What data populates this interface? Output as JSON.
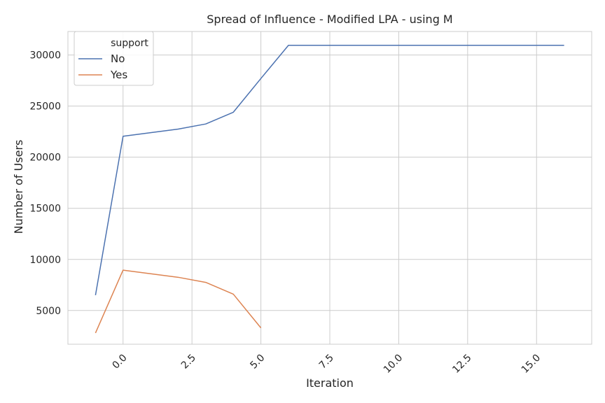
{
  "chart_data": {
    "type": "line",
    "title": "Spread of Influence - Modified LPA - using M",
    "xlabel": "Iteration",
    "ylabel": "Number of Users",
    "xlim": [
      -2,
      17
    ],
    "ylim": [
      1700,
      32300
    ],
    "xticks": [
      0.0,
      2.5,
      5.0,
      7.5,
      10.0,
      12.5,
      15.0
    ],
    "xtick_labels": [
      "0.0",
      "2.5",
      "5.0",
      "7.5",
      "10.0",
      "12.5",
      "15.0"
    ],
    "yticks": [
      5000,
      10000,
      15000,
      20000,
      25000,
      30000
    ],
    "ytick_labels": [
      "5000",
      "10000",
      "15000",
      "20000",
      "25000",
      "30000"
    ],
    "grid": true,
    "legend": {
      "title": "support",
      "position": "top-left"
    },
    "series": [
      {
        "name": "No",
        "color": "#4c72b0",
        "x": [
          -1,
          0,
          2,
          3,
          4,
          5,
          6,
          7,
          8,
          9,
          10,
          11,
          12,
          13,
          14,
          15,
          16
        ],
        "y": [
          6500,
          22050,
          22750,
          23250,
          24400,
          27700,
          30950,
          30950,
          30950,
          30950,
          30950,
          30950,
          30950,
          30950,
          30950,
          30950,
          30950
        ]
      },
      {
        "name": "Yes",
        "color": "#dd8452",
        "x": [
          -1,
          0,
          2,
          3,
          4,
          5
        ],
        "y": [
          2800,
          8950,
          8250,
          7750,
          6600,
          3300
        ]
      }
    ]
  }
}
